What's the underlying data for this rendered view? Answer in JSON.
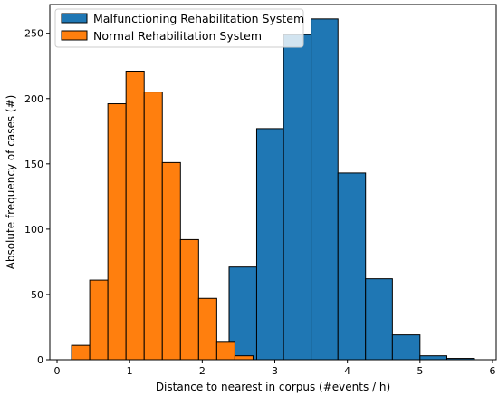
{
  "chart_data": {
    "type": "histogram",
    "xlabel": "Distance to nearest in corpus (#events / h)",
    "ylabel": "Absolute frequency of cases (#)",
    "xlim": [
      -0.1,
      6.05
    ],
    "ylim": [
      0,
      272
    ],
    "x_ticks": [
      0,
      1,
      2,
      3,
      4,
      5,
      6
    ],
    "y_ticks": [
      0,
      50,
      100,
      150,
      200,
      250
    ],
    "grid": false,
    "legend_position": "top-left",
    "series": [
      {
        "name": "Malfunctioning Rehabilitation System",
        "color": "#1f77b4",
        "bin_edges": [
          2.37,
          2.75,
          3.12,
          3.5,
          3.87,
          4.25,
          4.62,
          5.0,
          5.37,
          5.75
        ],
        "counts": [
          71,
          177,
          249,
          261,
          143,
          62,
          19,
          3,
          1
        ]
      },
      {
        "name": "Normal Rehabilitation System",
        "color": "#ff7f0e",
        "bin_edges": [
          0.2,
          0.45,
          0.7,
          0.95,
          1.2,
          1.45,
          1.7,
          1.95,
          2.2,
          2.45,
          2.7
        ],
        "counts": [
          11,
          61,
          196,
          221,
          205,
          151,
          92,
          47,
          14,
          3
        ]
      }
    ]
  }
}
